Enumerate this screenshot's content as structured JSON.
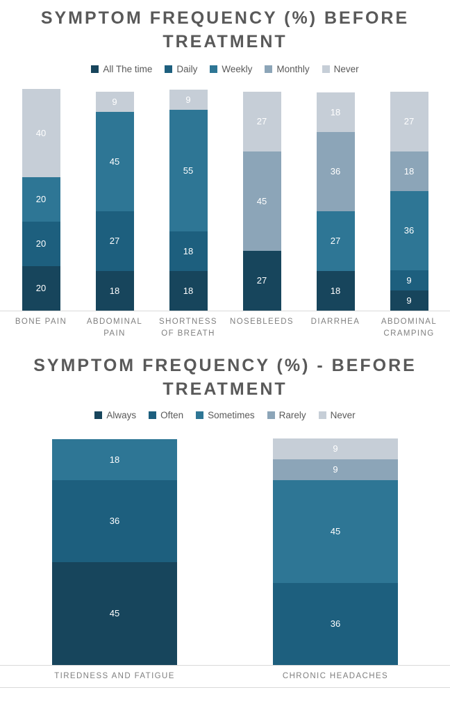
{
  "styles": {
    "title_color": "#595959",
    "legend_text_color": "#595959",
    "category_label_color": "#7F7F7F",
    "axis_line_color": "#D9D9D9",
    "data_label_color": "#FFFFFF",
    "background": "#FFFFFF"
  },
  "chart_data": [
    {
      "type": "bar",
      "stacked": true,
      "title": "SYMPTOM FREQUENCY (%) BEFORE TREATMENT",
      "legend_position": "top",
      "grid": false,
      "ylim": [
        0,
        100
      ],
      "categories": [
        "BONE PAIN",
        "ABDOMINAL PAIN",
        "SHORTNESS OF BREATH",
        "NOSEBLEEDS",
        "DIARRHEA",
        "ABDOMINAL CRAMPING"
      ],
      "series": [
        {
          "name": "All The time",
          "color": "#17455C",
          "values": [
            20,
            18,
            18,
            27,
            18,
            9
          ]
        },
        {
          "name": "Daily",
          "color": "#1D5F7E",
          "values": [
            20,
            27,
            18,
            0,
            0,
            9
          ]
        },
        {
          "name": "Weekly",
          "color": "#2E7695",
          "values": [
            20,
            45,
            55,
            0,
            27,
            36
          ]
        },
        {
          "name": "Monthly",
          "color": "#8CA5B8",
          "values": [
            0,
            0,
            0,
            45,
            36,
            18
          ]
        },
        {
          "name": "Never",
          "color": "#C6CED7",
          "values": [
            40,
            9,
            9,
            27,
            18,
            27
          ]
        }
      ],
      "data_labels": true
    },
    {
      "type": "bar",
      "stacked": true,
      "title": "SYMPTOM FREQUENCY (%) - BEFORE TREATMENT",
      "legend_position": "top",
      "grid": false,
      "ylim": [
        0,
        100
      ],
      "categories": [
        "TIREDNESS AND FATIGUE",
        "CHRONIC HEADACHES"
      ],
      "series": [
        {
          "name": "Always",
          "color": "#17455C",
          "values": [
            45,
            0
          ]
        },
        {
          "name": "Often",
          "color": "#1D5F7E",
          "values": [
            36,
            36
          ]
        },
        {
          "name": "Sometimes",
          "color": "#2E7695",
          "values": [
            18,
            45
          ]
        },
        {
          "name": "Rarely",
          "color": "#8CA5B8",
          "values": [
            0,
            9
          ]
        },
        {
          "name": "Never",
          "color": "#C6CED7",
          "values": [
            0,
            9
          ]
        }
      ],
      "data_labels": true
    }
  ]
}
